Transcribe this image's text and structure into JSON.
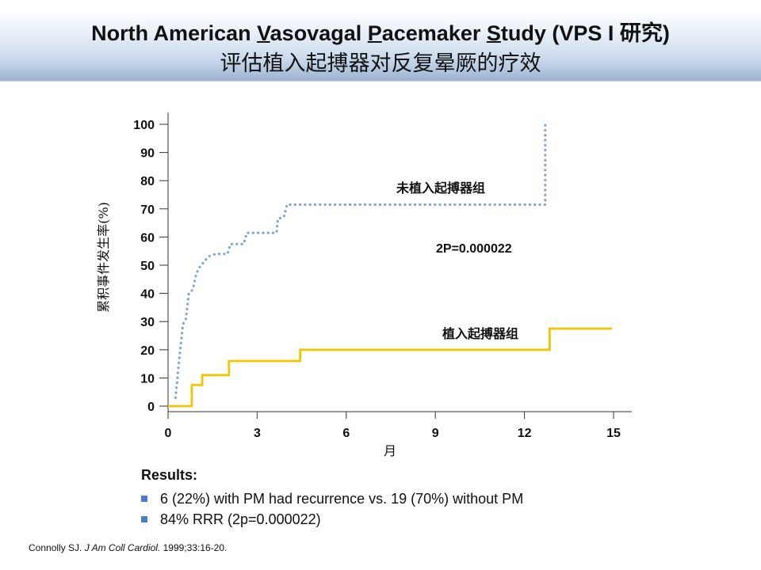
{
  "header": {
    "title_pre": "North American ",
    "title_u1": "V",
    "title_mid1": "asovagal ",
    "title_u2": "P",
    "title_mid2": "acemaker ",
    "title_u3": "S",
    "title_post": "tudy (VPS I 研究)",
    "subtitle": "评估植入起搏器对反复晕厥的疗效"
  },
  "chart_data": {
    "type": "line",
    "xlabel": "月",
    "ylabel": "累积事件发生率(%)",
    "xlim": [
      0,
      15
    ],
    "ylim": [
      0,
      100
    ],
    "xticks": [
      0,
      3,
      6,
      9,
      12,
      15
    ],
    "yticks": [
      0,
      10,
      20,
      30,
      40,
      50,
      60,
      70,
      80,
      90,
      100
    ],
    "annotation": "2P=0.000022",
    "series": [
      {
        "name": "未植入起搏器组",
        "color": "#7fa6d3",
        "style": "dotted",
        "x": [
          0.25,
          0.3,
          0.35,
          0.4,
          0.45,
          0.5,
          0.55,
          0.6,
          0.7,
          0.8,
          0.85,
          0.95,
          1.05,
          1.1,
          1.2,
          1.35,
          1.45,
          1.6,
          2.0,
          2.1,
          2.55,
          2.65,
          3.65,
          3.7,
          3.9,
          4.0,
          12.7,
          12.7
        ],
        "y": [
          3,
          8,
          14,
          19,
          24,
          29,
          30,
          31,
          40,
          41,
          42,
          47,
          49,
          50,
          51,
          53,
          53.5,
          54,
          54,
          57.5,
          57.5,
          61.5,
          61.5,
          66.5,
          67,
          71.5,
          71.5,
          100
        ]
      },
      {
        "name": "植入起搏器组",
        "color": "#f1c500",
        "style": "solid",
        "x": [
          0,
          0.8,
          0.8,
          1.15,
          1.15,
          2.05,
          2.05,
          4.45,
          4.45,
          12.85,
          12.85,
          14.95
        ],
        "y": [
          0,
          0,
          7.5,
          7.5,
          11,
          11,
          16,
          16,
          20,
          20,
          27.5,
          27.5
        ]
      }
    ]
  },
  "results": {
    "heading": "Results:",
    "items": [
      "6 (22%) with PM had recurrence vs. 19 (70%) without PM",
      "84% RRR (2p=0.000022)"
    ]
  },
  "citation": {
    "authors": "Connolly SJ. ",
    "journal": "J Am Coll Cardiol.",
    "details": " 1999;33:16-20."
  }
}
